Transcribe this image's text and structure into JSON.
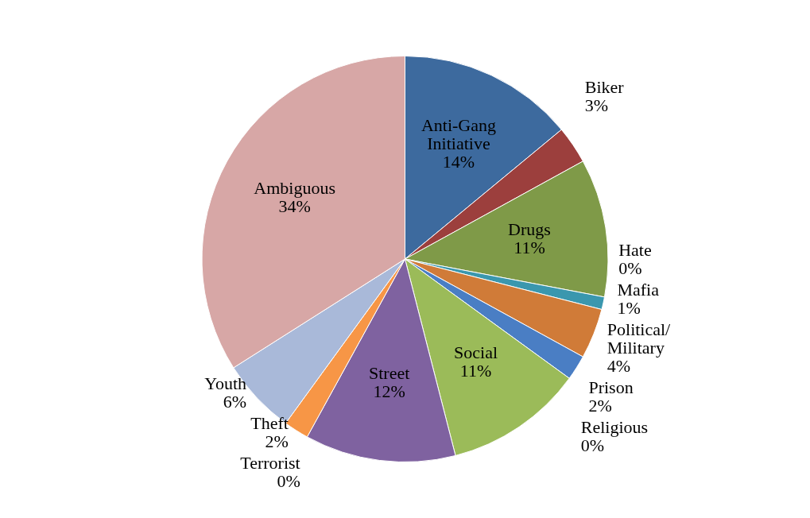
{
  "chart_data": {
    "type": "pie",
    "categories": [
      "Anti-Gang Initiative",
      "Biker",
      "Drugs",
      "Hate",
      "Mafia",
      "Political/Military",
      "Prison",
      "Religious",
      "Social",
      "Street",
      "Terrorist",
      "Theft",
      "Youth",
      "Ambiguous"
    ],
    "values": [
      14,
      3,
      11,
      0,
      1,
      4,
      2,
      0,
      11,
      12,
      0,
      2,
      6,
      34
    ],
    "colors": [
      "#3d6a9e",
      "#9c3f3d",
      "#7f9a48",
      "#6a4f8a",
      "#3a97ae",
      "#d07b38",
      "#4a7ec4",
      "#c0504d",
      "#9bbb59",
      "#7f62a0",
      "#4bacc6",
      "#f79646",
      "#a9b9d9",
      "#d7a7a6"
    ],
    "value_labels": [
      "14%",
      "3%",
      "11%",
      "0%",
      "1%",
      "4%",
      "2%",
      "0%",
      "11%",
      "12%",
      "0%",
      "2%",
      "6%",
      "34%"
    ]
  }
}
